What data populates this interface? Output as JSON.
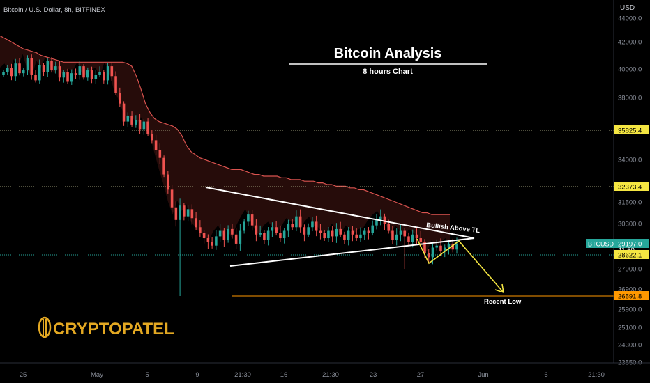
{
  "header": {
    "symbol_title": "Bitcoin / U.S. Dollar, 8h, BITFINEX",
    "currency": "USD"
  },
  "overlay": {
    "title": "Bitcoin  Analysis",
    "subtitle": "8 hours Chart",
    "logo_text": "CRYPTOPATEL",
    "annotation_bullish": "Bullish Above TL",
    "annotation_recent_low": "Recent Low"
  },
  "colors": {
    "up": "#26a69a",
    "down": "#ef5350",
    "cloud_line": "#d9534f",
    "cloud_fill": "#2a0d0b",
    "trendline": "#ffffff",
    "projection": "#f5e642",
    "support": "#ff9800",
    "label_yellow": "#f5e642",
    "label_green": "#26a69a",
    "label_orange": "#ff9800",
    "logo": "#e3a822"
  },
  "chart_data": {
    "type": "candlestick",
    "x_ticks": [
      "25",
      "May",
      "5",
      "9",
      "21:30",
      "16",
      "21:30",
      "23",
      "27",
      "Jun",
      "6",
      "21:30"
    ],
    "y_ticks": [
      "44000.0",
      "42000.0",
      "40000.0",
      "38000.0",
      "34000.0",
      "31500.0",
      "30300.0",
      "27900.0",
      "26900.0",
      "25900.0",
      "25100.0",
      "24300.0",
      "23550.0"
    ],
    "ylim": [
      23000,
      45000
    ],
    "price_labels": [
      {
        "text": "35825.4",
        "value": 35825.4,
        "style": "yellow"
      },
      {
        "text": "32373.4",
        "value": 32373.4,
        "style": "yellow"
      },
      {
        "text": "BTCUSD",
        "value": 29197.0,
        "style": "green"
      },
      {
        "text": "29197.0",
        "value": 29197.0,
        "style": "green"
      },
      {
        "text": "41:50",
        "value": 28900.0,
        "style": "plain"
      },
      {
        "text": "28622.1",
        "value": 28622.1,
        "style": "yellow"
      },
      {
        "text": "26591.8",
        "value": 26591.8,
        "style": "orange"
      }
    ],
    "candles_close": [
      39800,
      40100,
      39500,
      40400,
      39700,
      39900,
      40800,
      39600,
      39200,
      40300,
      39800,
      40600,
      39900,
      40200,
      39400,
      39800,
      39100,
      39700,
      39600,
      40200,
      39400,
      39900,
      39300,
      39600,
      39800,
      39200,
      40200,
      39500,
      38300,
      37600,
      36400,
      36800,
      36200,
      36500,
      35900,
      36400,
      35600,
      35200,
      34600,
      34100,
      33100,
      32200,
      31200,
      30500,
      31300,
      30700,
      31100,
      30600,
      30100,
      29800,
      29500,
      29300,
      29100,
      29600,
      29900,
      29400,
      30000,
      29700,
      29200,
      29900,
      30400,
      30800,
      30200,
      29700,
      29800,
      29400,
      29900,
      30100,
      29800,
      29500,
      29900,
      30300,
      30100,
      30700,
      30100,
      29700,
      30100,
      30400,
      29900,
      29800,
      29500,
      29900,
      29600,
      30000,
      29700,
      29400,
      29900,
      29700,
      29500,
      29700,
      29900,
      29800,
      30200,
      30500,
      30700,
      30300,
      29900,
      29400,
      29700,
      29900,
      29600,
      29300,
      29700,
      29500,
      29300,
      28700,
      28500,
      29000,
      29100,
      28800,
      29000,
      29200,
      28900,
      29197
    ],
    "cloud_upper": [
      42500,
      42300,
      42100,
      41900,
      41700,
      41500,
      41400,
      41300,
      41200,
      41000,
      40900,
      40800,
      40700,
      40600,
      40500,
      40500,
      40500,
      40500,
      40500,
      40500,
      40500,
      40500,
      40500,
      40500,
      40500,
      40500,
      40500,
      40500,
      40400,
      40200,
      39500,
      38600,
      37600,
      37000,
      36600,
      36400,
      36300,
      36200,
      36100,
      35900,
      35500,
      34900,
      34500,
      34300,
      34100,
      34000,
      33900,
      33800,
      33700,
      33600,
      33500,
      33400,
      33400,
      33400,
      33300,
      33200,
      33100,
      33100,
      33000,
      33000,
      33000,
      33000,
      32900,
      32900,
      32800,
      32800,
      32800,
      32700,
      32700,
      32700,
      32600,
      32600,
      32500,
      32500,
      32400,
      32400,
      32400,
      32300,
      32300,
      32200,
      32200,
      32100,
      32000,
      31900,
      31800,
      31700,
      31600,
      31500,
      31400,
      31300,
      31200,
      31100,
      31000,
      30900,
      30900,
      30800,
      30800,
      30800,
      30800,
      30800
    ],
    "levels": [
      {
        "name": "resistance-1",
        "value": 35825.4
      },
      {
        "name": "resistance-2",
        "value": 32373.4
      },
      {
        "name": "current",
        "value": 28622.1
      },
      {
        "name": "recent-low",
        "value": 26591.8
      }
    ]
  }
}
